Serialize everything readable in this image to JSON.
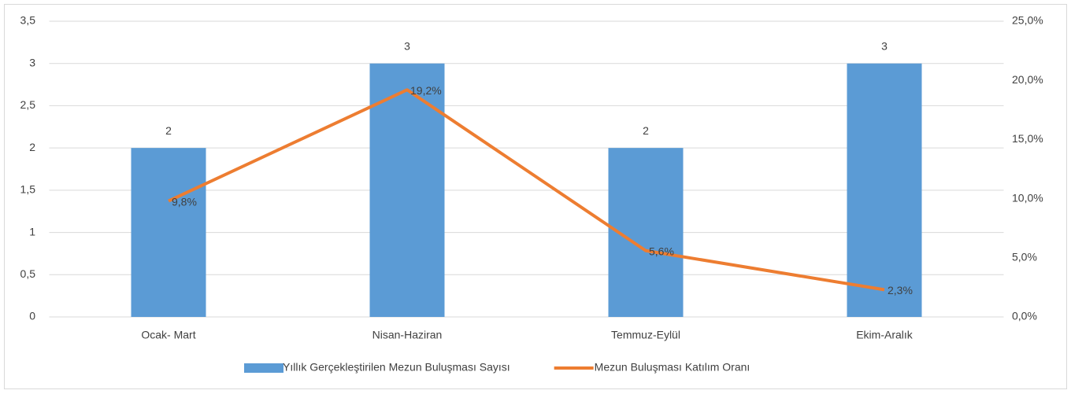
{
  "chart_data": {
    "type": "combo",
    "categories": [
      "Ocak- Mart",
      "Nisan-Haziran",
      "Temmuz-Eylül",
      "Ekim-Aralık"
    ],
    "series": [
      {
        "name": "Yıllık Gerçekleştirilen Mezun Buluşması Sayısı",
        "type": "bar",
        "color": "#5b9bd5",
        "values": [
          2,
          3,
          2,
          3
        ]
      },
      {
        "name": "Mezun Buluşması Katılım Oranı",
        "type": "line",
        "axis": "y2",
        "color": "#ed7d31",
        "values": [
          9.8,
          19.2,
          5.6,
          2.3
        ],
        "value_labels": [
          "9,8%",
          "19,2%",
          "5,6%",
          "2,3%"
        ]
      }
    ],
    "ylim": [
      0,
      3.5
    ],
    "yticks": [
      0,
      {
        "value": 0.5,
        "label": "0,5"
      },
      1,
      {
        "value": 1.5,
        "label": "1,5"
      },
      2,
      {
        "value": 2.5,
        "label": "2,5"
      },
      3,
      {
        "value": 3.5,
        "label": "3,5"
      }
    ],
    "y2lim": [
      0,
      25
    ],
    "y2ticks": [
      {
        "value": 0,
        "label": "0,0%"
      },
      {
        "value": 5,
        "label": "5,0%"
      },
      {
        "value": 10,
        "label": "10,0%"
      },
      {
        "value": 15,
        "label": "15,0%"
      },
      {
        "value": 20,
        "label": "20,0%"
      },
      {
        "value": 25,
        "label": "25,0%"
      }
    ],
    "grid": true,
    "legend": "bottom"
  }
}
